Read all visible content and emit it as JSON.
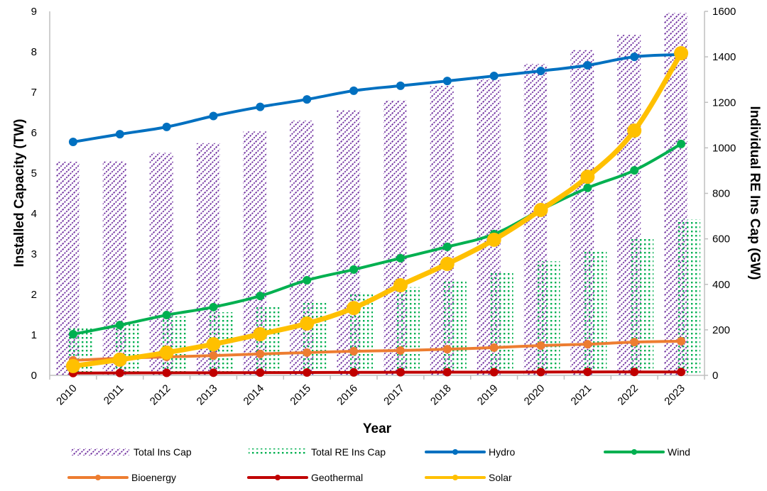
{
  "chart_data": {
    "type": "bar+line",
    "title": "",
    "xlabel": "Year",
    "ylabel_left": "Installed Capacity (TW)",
    "ylabel_right": "Individual RE Ins Cap (GW)",
    "ylim_left": [
      0,
      9
    ],
    "yticks_left": [
      0,
      1,
      2,
      3,
      4,
      5,
      6,
      7,
      8,
      9
    ],
    "ylim_right": [
      0,
      1600
    ],
    "yticks_right": [
      0,
      200,
      400,
      600,
      800,
      1000,
      1200,
      1400,
      1600
    ],
    "grid": false,
    "legend_position": "bottom",
    "categories": [
      "2010",
      "2011",
      "2012",
      "2013",
      "2014",
      "2015",
      "2016",
      "2017",
      "2018",
      "2019",
      "2020",
      "2021",
      "2022",
      "2023"
    ],
    "bar_series": [
      {
        "name": "Total Ins Cap",
        "axis": "left",
        "color": "#7030A0",
        "pattern": "diagonal-dashed",
        "values": [
          5.28,
          5.3,
          5.5,
          5.74,
          6.03,
          6.3,
          6.56,
          6.8,
          7.16,
          7.32,
          7.7,
          8.04,
          8.42,
          8.96
        ]
      },
      {
        "name": "Total RE Ins Cap",
        "axis": "left",
        "color": "#00B050",
        "pattern": "dotted-grid",
        "values": [
          1.21,
          1.3,
          1.46,
          1.56,
          1.72,
          1.84,
          2.0,
          2.18,
          2.35,
          2.54,
          2.82,
          3.07,
          3.39,
          3.86
        ]
      }
    ],
    "line_series": [
      {
        "name": "Hydro",
        "axis": "right",
        "color": "#0070C0",
        "values": [
          1026,
          1060,
          1092,
          1140,
          1180,
          1213,
          1251,
          1273,
          1294,
          1316,
          1338,
          1363,
          1400,
          1410
        ]
      },
      {
        "name": "Wind",
        "axis": "right",
        "color": "#00B050",
        "values": [
          181,
          221,
          265,
          300,
          349,
          418,
          465,
          515,
          565,
          621,
          727,
          824,
          901,
          1017
        ]
      },
      {
        "name": "Bioenergy",
        "axis": "right",
        "color": "#ED7D31",
        "values": [
          66,
          75,
          81,
          87,
          94,
          100,
          106,
          109,
          115,
          122,
          131,
          137,
          146,
          150
        ]
      },
      {
        "name": "Geothermal",
        "axis": "right",
        "color": "#C00000",
        "values": [
          10,
          10.5,
          11,
          11.5,
          12,
          12.5,
          13,
          13.5,
          14,
          14,
          14.5,
          15,
          15,
          15
        ]
      },
      {
        "name": "Solar",
        "axis": "right",
        "color": "#FFC000",
        "values": [
          41,
          69,
          100,
          137,
          181,
          228,
          296,
          396,
          490,
          596,
          727,
          873,
          1076,
          1416
        ]
      }
    ],
    "legend": [
      "Total Ins Cap",
      "Total RE Ins Cap",
      "Hydro",
      "Wind",
      "Bioenergy",
      "Geothermal",
      "Solar"
    ]
  }
}
